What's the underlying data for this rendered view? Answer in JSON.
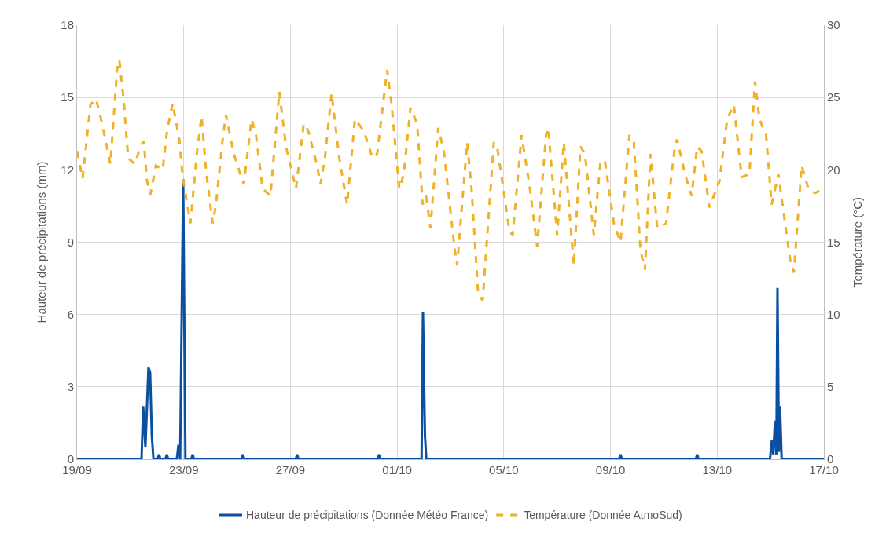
{
  "chart_data": {
    "type": "line",
    "ylabel": "Hauteur de précipitations (mm)",
    "y2label": "Température (°C)",
    "xlim": [
      "--09-19",
      "--10-17"
    ],
    "xticks": [
      {
        "value": "--09-19",
        "label": "19/09"
      },
      {
        "value": "--09-23",
        "label": "23/09"
      },
      {
        "value": "--09-27",
        "label": "27/09"
      },
      {
        "value": "--10-01",
        "label": "01/10"
      },
      {
        "value": "--10-05",
        "label": "05/10"
      },
      {
        "value": "--10-09",
        "label": "09/10"
      },
      {
        "value": "--10-13",
        "label": "13/10"
      },
      {
        "value": "--10-17",
        "label": "17/10"
      }
    ],
    "ylim": [
      0,
      18
    ],
    "yticks": [
      0,
      3,
      6,
      9,
      12,
      15,
      18
    ],
    "y2lim": [
      0,
      30
    ],
    "y2ticks": [
      0,
      5,
      10,
      15,
      20,
      25,
      30
    ],
    "grid": true,
    "legend": "bottom",
    "marker": "none",
    "series": [
      {
        "name": "Hauteur de précipitations (Donnée Météo France)",
        "color": "#0a4fa0",
        "line_style": "solid",
        "x": [
          "--09-19T00:00",
          "--09-21T10:00",
          "--09-21T11:30",
          "--09-21T13:30",
          "--09-21T16:15",
          "--09-21T17:45",
          "--09-21T19:15",
          "--09-21T20:45",
          "--09-22T00:30",
          "--09-22T01:45",
          "--09-22T03:00",
          "--09-22T07:30",
          "--09-22T08:45",
          "--09-22T10:00",
          "--09-22T17:45",
          "--09-22T19:15",
          "--09-22T20:45",
          "--09-22T23:30",
          "--09-23T01:30",
          "--09-23T06:45",
          "--09-23T08:00",
          "--09-23T09:15",
          "--09-25T04:00",
          "--09-25T05:15",
          "--09-25T06:30",
          "--09-27T04:45",
          "--09-27T06:00",
          "--09-27T07:15",
          "--09-30T06:30",
          "--09-30T07:45",
          "--09-30T09:00",
          "--10-01T22:00",
          "--10-01T23:15",
          "--10-02T01:00",
          "--10-02T02:15",
          "--10-09T07:45",
          "--10-09T09:00",
          "--10-09T10:15",
          "--10-12T04:45",
          "--10-12T06:00",
          "--10-12T07:15",
          "--10-14T23:30",
          "--10-15T01:15",
          "--10-15T02:30",
          "--10-15T04:00",
          "--10-15T05:15",
          "--10-15T06:15",
          "--10-15T07:30",
          "--10-15T08:30",
          "--10-15T10:00",
          "--10-17T00:00"
        ],
        "values": [
          0,
          0,
          2.2,
          0.5,
          3.8,
          3.6,
          1.0,
          0,
          0,
          0.2,
          0,
          0,
          0.2,
          0,
          0,
          0.6,
          0,
          11.6,
          0,
          0,
          0.2,
          0,
          0,
          0.2,
          0,
          0,
          0.2,
          0,
          0,
          0.2,
          0,
          0,
          6.1,
          1.0,
          0,
          0,
          0.2,
          0,
          0,
          0.2,
          0,
          0,
          0.8,
          0.2,
          1.6,
          0.2,
          7.1,
          0.3,
          2.2,
          0,
          0
        ]
      },
      {
        "name": "Température (Donnée AtmoSud)",
        "color": "#f0b028",
        "line_style": "dashed",
        "axis": "y2",
        "x": [
          "--09-19T00:00",
          "--09-19T05:00",
          "--09-19T12:00",
          "--09-19T17:00",
          "--09-19T21:00",
          "--09-20T02:00",
          "--09-20T06:00",
          "--09-20T12:00",
          "--09-20T14:00",
          "--09-20T18:00",
          "--09-20T22:00",
          "--09-21T04:00",
          "--09-21T09:00",
          "--09-21T12:00",
          "--09-21T15:00",
          "--09-21T18:00",
          "--09-21T23:00",
          "--09-22T05:00",
          "--09-22T09:00",
          "--09-22T14:00",
          "--09-22T20:00",
          "--09-22T23:00",
          "--09-23T06:00",
          "--09-23T12:00",
          "--09-23T16:00",
          "--09-23T20:00",
          "--09-24T02:00",
          "--09-24T05:00",
          "--09-24T11:00",
          "--09-24T14:00",
          "--09-24T21:00",
          "--09-25T06:00",
          "--09-25T13:00",
          "--09-25T17:00",
          "--09-25T23:00",
          "--09-26T06:00",
          "--09-26T14:00",
          "--09-26T20:00",
          "--09-27T05:00",
          "--09-27T12:00",
          "--09-27T16:00",
          "--09-28T00:00",
          "--09-28T03:00",
          "--09-28T07:00",
          "--09-28T13:00",
          "--09-28T20:00",
          "--09-29T03:00",
          "--09-29T10:00",
          "--09-29T18:00",
          "--09-30T02:00",
          "--09-30T06:00",
          "--09-30T15:00",
          "--09-30T19:00",
          "--10-01T02:00",
          "--10-01T06:00",
          "--10-01T12:00",
          "--10-01T18:00",
          "--10-01T23:00",
          "--10-02T02:00",
          "--10-02T06:00",
          "--10-02T13:00",
          "--10-02T18:00",
          "--10-03T04:00",
          "--10-03T06:00",
          "--10-03T15:00",
          "--10-03T19:00",
          "--10-04T01:00",
          "--10-04T05:00",
          "--10-04T15:00",
          "--10-04T18:00",
          "--10-05T05:00",
          "--10-05T08:00",
          "--10-05T16:00",
          "--10-05T23:00",
          "--10-06T06:00",
          "--10-06T14:00",
          "--10-06T16:00",
          "--10-07T00:00",
          "--10-07T06:00",
          "--10-07T15:00",
          "--10-07T21:00",
          "--10-08T01:00",
          "--10-08T09:00",
          "--10-08T15:00",
          "--10-08T19:00",
          "--10-09T03:00",
          "--10-09T09:00",
          "--10-09T17:00",
          "--10-09T21:00",
          "--10-10T03:00",
          "--10-10T07:00",
          "--10-10T12:00",
          "--10-10T18:00",
          "--10-11T02:00",
          "--10-11T10:00",
          "--10-11T12:00",
          "--10-11T19:00",
          "--10-12T01:00",
          "--10-12T06:00",
          "--10-12T10:00",
          "--10-12T17:00",
          "--10-13T02:00",
          "--10-13T09:00",
          "--10-13T15:00",
          "--10-13T22:00",
          "--10-14T05:00",
          "--10-14T10:00",
          "--10-14T14:00",
          "--10-14T20:00",
          "--10-15T01:00",
          "--10-15T07:00",
          "--10-15T18:00",
          "--10-15T21:00",
          "--10-16T04:00",
          "--10-16T10:00",
          "--10-16T16:00",
          "--10-17T00:00"
        ],
        "values": [
          21.3,
          19.4,
          24.5,
          24.9,
          23.7,
          21.9,
          20.4,
          26.9,
          27.6,
          24.8,
          20.8,
          20.4,
          21.6,
          22.0,
          19.2,
          18.3,
          20.3,
          20.0,
          22.7,
          24.6,
          22.1,
          19.5,
          16.3,
          21.3,
          23.7,
          20.0,
          16.3,
          17.6,
          22.1,
          23.8,
          21.1,
          19.0,
          23.5,
          22.4,
          18.7,
          18.2,
          25.4,
          21.6,
          18.7,
          23.2,
          22.7,
          20.3,
          19.0,
          20.8,
          25.3,
          20.8,
          17.6,
          23.5,
          22.7,
          20.8,
          21.1,
          26.9,
          24.5,
          18.7,
          19.7,
          24.3,
          23.2,
          17.6,
          18.2,
          16.0,
          22.9,
          21.3,
          14.4,
          13.4,
          21.9,
          18.7,
          11.3,
          11.0,
          21.9,
          21.6,
          15.8,
          15.5,
          22.4,
          19.0,
          14.7,
          22.4,
          22.9,
          15.5,
          21.9,
          13.4,
          21.6,
          21.1,
          15.5,
          20.6,
          20.6,
          16.3,
          15.0,
          22.4,
          21.9,
          14.4,
          13.1,
          21.1,
          16.0,
          16.3,
          21.7,
          22.1,
          19.7,
          18.2,
          21.6,
          21.3,
          17.4,
          19.2,
          23.5,
          24.5,
          19.5,
          19.7,
          26.1,
          23.5,
          22.4,
          17.6,
          19.7,
          13.6,
          12.9,
          20.3,
          18.7,
          18.4,
          18.7
        ]
      }
    ]
  }
}
